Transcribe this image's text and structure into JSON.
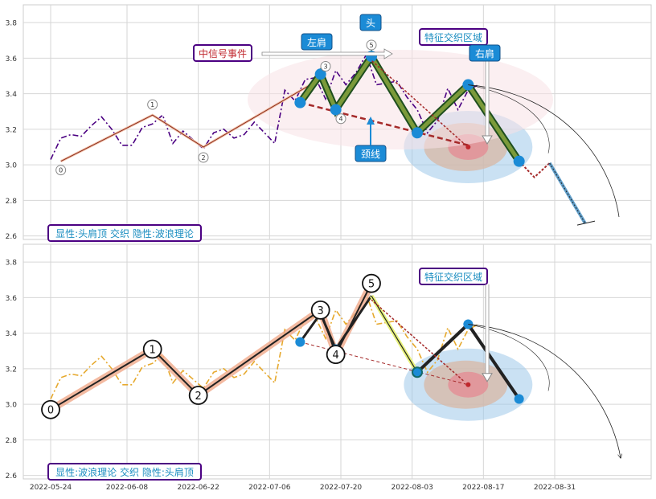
{
  "chart_data": [
    {
      "type": "line",
      "panel": "top",
      "ylim": [
        2.58,
        3.9
      ],
      "yticks": [
        2.6,
        2.8,
        3.0,
        3.2,
        3.4,
        3.6,
        3.8
      ],
      "grid": true,
      "price_series": {
        "style": "dash-dot",
        "color": "#4b0082",
        "x": [
          "2022-05-24",
          "2022-05-26",
          "2022-05-28",
          "2022-05-30",
          "2022-06-01",
          "2022-06-03",
          "2022-06-05",
          "2022-06-07",
          "2022-06-09",
          "2022-06-11",
          "2022-06-13",
          "2022-06-15",
          "2022-06-17",
          "2022-06-19",
          "2022-06-21",
          "2022-06-23",
          "2022-06-25",
          "2022-06-27",
          "2022-06-29",
          "2022-07-01",
          "2022-07-03",
          "2022-07-05",
          "2022-07-07",
          "2022-07-09",
          "2022-07-11",
          "2022-07-13",
          "2022-07-15",
          "2022-07-17",
          "2022-07-19",
          "2022-07-21",
          "2022-07-23",
          "2022-07-25",
          "2022-07-27",
          "2022-07-29",
          "2022-07-31",
          "2022-08-02",
          "2022-08-04",
          "2022-08-06",
          "2022-08-08",
          "2022-08-10",
          "2022-08-12",
          "2022-08-14",
          "2022-08-16"
        ],
        "y": [
          3.03,
          3.15,
          3.17,
          3.16,
          3.22,
          3.27,
          3.2,
          3.11,
          3.11,
          3.21,
          3.23,
          3.28,
          3.12,
          3.19,
          3.14,
          3.09,
          3.18,
          3.2,
          3.15,
          3.17,
          3.24,
          3.18,
          3.12,
          3.42,
          3.36,
          3.48,
          3.49,
          3.37,
          3.53,
          3.45,
          3.52,
          3.62,
          3.45,
          3.46,
          3.47,
          3.38,
          3.31,
          3.18,
          3.25,
          3.43,
          3.31,
          3.42,
          3.45
        ]
      },
      "wave_points": [
        {
          "label": "0",
          "x": "2022-05-26",
          "y": 3.02
        },
        {
          "label": "1",
          "x": "2022-06-13",
          "y": 3.28
        },
        {
          "label": "2",
          "x": "2022-06-23",
          "y": 3.1
        },
        {
          "label": "3",
          "x": "2022-07-17",
          "y": 3.5
        },
        {
          "label": "4",
          "x": "2022-07-20",
          "y": 3.3
        },
        {
          "label": "5",
          "x": "2022-07-26",
          "y": 3.62
        }
      ],
      "pattern_points": [
        {
          "x": "2022-07-12",
          "y": 3.35
        },
        {
          "x": "2022-07-16",
          "y": 3.51
        },
        {
          "x": "2022-07-19",
          "y": 3.31
        },
        {
          "x": "2022-07-26",
          "y": 3.61
        },
        {
          "x": "2022-08-04",
          "y": 3.18
        },
        {
          "x": "2022-08-14",
          "y": 3.45
        },
        {
          "x": "2022-08-24",
          "y": 3.02
        }
      ],
      "projection": [
        {
          "x": "2022-08-24",
          "y": 3.02
        },
        {
          "x": "2022-08-27",
          "y": 2.93
        },
        {
          "x": "2022-08-30",
          "y": 3.01
        },
        {
          "x": "2022-09-06",
          "y": 2.67
        }
      ],
      "neckline": [
        {
          "x": "2022-07-12",
          "y": 3.35
        },
        {
          "x": "2022-08-14",
          "y": 3.11
        }
      ],
      "target": {
        "x": "2022-08-14",
        "y": 3.1
      },
      "annotations": {
        "head": "头",
        "left_shoulder": "左肩",
        "right_shoulder": "右肩",
        "neckline": "颈线",
        "signal_event": "中信号事件",
        "interaction_zone": "特征交织区域"
      },
      "status_label": "显性:头肩顶 交织 隐性:波浪理论"
    },
    {
      "type": "line",
      "panel": "bottom",
      "ylim": [
        2.58,
        3.9
      ],
      "yticks": [
        2.6,
        2.8,
        3.0,
        3.2,
        3.4,
        3.6,
        3.8
      ],
      "xticks": [
        "2022-05-24",
        "2022-06-08",
        "2022-06-22",
        "2022-07-06",
        "2022-07-20",
        "2022-08-03",
        "2022-08-17",
        "2022-08-31"
      ],
      "grid": true,
      "price_series": {
        "style": "dash-dot",
        "color": "#e6a92e",
        "x": [
          "2022-05-24",
          "2022-05-26",
          "2022-05-28",
          "2022-05-30",
          "2022-06-01",
          "2022-06-03",
          "2022-06-05",
          "2022-06-07",
          "2022-06-09",
          "2022-06-11",
          "2022-06-13",
          "2022-06-15",
          "2022-06-17",
          "2022-06-19",
          "2022-06-21",
          "2022-06-23",
          "2022-06-25",
          "2022-06-27",
          "2022-06-29",
          "2022-07-01",
          "2022-07-03",
          "2022-07-05",
          "2022-07-07",
          "2022-07-09",
          "2022-07-11",
          "2022-07-13",
          "2022-07-15",
          "2022-07-17",
          "2022-07-19",
          "2022-07-21",
          "2022-07-23",
          "2022-07-25",
          "2022-07-27",
          "2022-07-29",
          "2022-07-31",
          "2022-08-02",
          "2022-08-04",
          "2022-08-06",
          "2022-08-08",
          "2022-08-10",
          "2022-08-12",
          "2022-08-14",
          "2022-08-16"
        ],
        "y": [
          3.03,
          3.15,
          3.17,
          3.16,
          3.22,
          3.27,
          3.2,
          3.11,
          3.11,
          3.21,
          3.23,
          3.28,
          3.12,
          3.19,
          3.14,
          3.09,
          3.18,
          3.2,
          3.15,
          3.17,
          3.24,
          3.18,
          3.12,
          3.42,
          3.36,
          3.48,
          3.49,
          3.37,
          3.53,
          3.45,
          3.52,
          3.62,
          3.45,
          3.46,
          3.47,
          3.38,
          3.31,
          3.18,
          3.25,
          3.43,
          3.31,
          3.42,
          3.45
        ]
      },
      "wave_points": [
        {
          "label": "0",
          "x": "2022-05-24",
          "y": 2.97
        },
        {
          "label": "1",
          "x": "2022-06-13",
          "y": 3.31
        },
        {
          "label": "2",
          "x": "2022-06-22",
          "y": 3.05
        },
        {
          "label": "3",
          "x": "2022-07-16",
          "y": 3.53
        },
        {
          "label": "4",
          "x": "2022-07-19",
          "y": 3.28
        },
        {
          "label": "5",
          "x": "2022-07-26",
          "y": 3.68
        }
      ],
      "pattern_points": [
        {
          "x": "2022-07-12",
          "y": 3.35
        },
        {
          "x": "2022-07-16",
          "y": 3.51
        },
        {
          "x": "2022-07-19",
          "y": 3.31
        },
        {
          "x": "2022-07-26",
          "y": 3.61
        },
        {
          "x": "2022-08-04",
          "y": 3.18
        },
        {
          "x": "2022-08-14",
          "y": 3.45
        },
        {
          "x": "2022-08-24",
          "y": 3.03
        }
      ],
      "neckline": [
        {
          "x": "2022-07-12",
          "y": 3.35
        },
        {
          "x": "2022-08-14",
          "y": 3.11
        }
      ],
      "target": {
        "x": "2022-08-14",
        "y": 3.11
      },
      "annotations": {
        "interaction_zone": "特征交织区域"
      },
      "status_label": "显性:波浪理论 交织 隐性:头肩顶"
    }
  ]
}
